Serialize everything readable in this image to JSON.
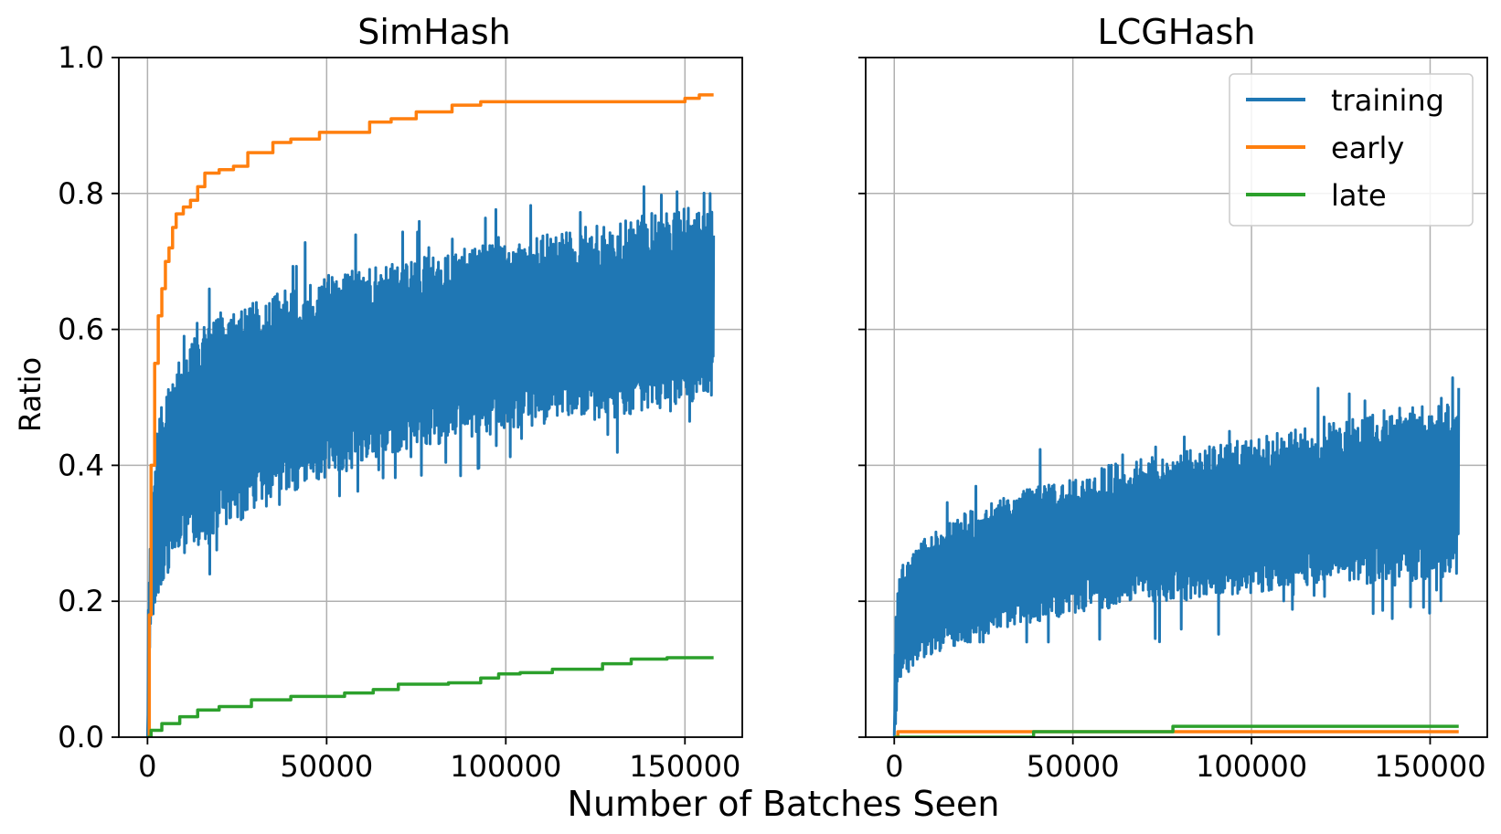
{
  "figure": {
    "xlabel": "Number of Batches Seen",
    "ylabel": "Ratio"
  },
  "colors": {
    "training": "#1f77b4",
    "early": "#ff7f0e",
    "late": "#2ca02c",
    "grid": "#b0b0b0",
    "axis": "#000000"
  },
  "legend": {
    "placement": "upper-right of right panel",
    "entries": [
      "training",
      "early",
      "late"
    ]
  },
  "chart_data": [
    {
      "type": "line",
      "title": "SimHash",
      "xlabel": "",
      "ylabel": "Ratio",
      "xlim": [
        -8000,
        166000
      ],
      "ylim": [
        0,
        1.0
      ],
      "grid": true,
      "xticks": [
        0,
        50000,
        100000,
        150000
      ],
      "xtick_labels": [
        "0",
        "50000",
        "100000",
        "150000"
      ],
      "yticks": [
        0,
        0.2,
        0.4,
        0.6,
        0.8,
        1.0
      ],
      "ytick_labels": [
        "0.0",
        "0.2",
        "0.4",
        "0.6",
        "0.8",
        "1.0"
      ],
      "series": [
        {
          "name": "training",
          "kind": "noisy-band",
          "x": [
            0,
            1000,
            3000,
            5000,
            10000,
            20000,
            30000,
            40000,
            50000,
            60000,
            70000,
            80000,
            90000,
            100000,
            110000,
            120000,
            130000,
            140000,
            150000,
            158000
          ],
          "low": [
            0.0,
            0.16,
            0.2,
            0.24,
            0.27,
            0.3,
            0.33,
            0.36,
            0.38,
            0.4,
            0.42,
            0.43,
            0.44,
            0.45,
            0.46,
            0.47,
            0.47,
            0.48,
            0.49,
            0.5
          ],
          "high": [
            0.15,
            0.35,
            0.47,
            0.5,
            0.58,
            0.62,
            0.64,
            0.66,
            0.68,
            0.69,
            0.7,
            0.71,
            0.72,
            0.73,
            0.74,
            0.75,
            0.76,
            0.77,
            0.78,
            0.78
          ],
          "spike_low_min": 0.24,
          "spike_high_max": 0.81
        },
        {
          "name": "early",
          "kind": "step",
          "x": [
            0,
            500,
            1000,
            2000,
            3000,
            4000,
            5000,
            6000,
            7000,
            8000,
            10000,
            12000,
            14000,
            16000,
            20000,
            24000,
            28000,
            35000,
            40000,
            48000,
            56000,
            62000,
            68000,
            75000,
            85000,
            93000,
            110000,
            130000,
            150000,
            154000,
            158000
          ],
          "y": [
            0.0,
            0.18,
            0.4,
            0.55,
            0.62,
            0.66,
            0.7,
            0.72,
            0.75,
            0.77,
            0.78,
            0.79,
            0.81,
            0.83,
            0.835,
            0.84,
            0.86,
            0.875,
            0.88,
            0.89,
            0.89,
            0.905,
            0.91,
            0.92,
            0.93,
            0.935,
            0.935,
            0.935,
            0.94,
            0.945,
            0.945
          ]
        },
        {
          "name": "late",
          "kind": "step",
          "x": [
            0,
            1000,
            4000,
            9000,
            14000,
            20000,
            29000,
            40000,
            55000,
            63000,
            70000,
            84000,
            93000,
            98000,
            104000,
            113000,
            127000,
            135000,
            145000,
            158000
          ],
          "y": [
            0.0,
            0.01,
            0.02,
            0.03,
            0.04,
            0.045,
            0.055,
            0.06,
            0.065,
            0.07,
            0.078,
            0.08,
            0.087,
            0.093,
            0.095,
            0.1,
            0.108,
            0.115,
            0.117,
            0.117
          ]
        }
      ]
    },
    {
      "type": "line",
      "title": "LCGHash",
      "xlabel": "",
      "ylabel": "",
      "xlim": [
        -8000,
        166000
      ],
      "ylim": [
        0,
        1.0
      ],
      "grid": true,
      "xticks": [
        0,
        50000,
        100000,
        150000
      ],
      "xtick_labels": [
        "0",
        "50000",
        "100000",
        "150000"
      ],
      "yticks": [
        0,
        0.2,
        0.4,
        0.6,
        0.8,
        1.0
      ],
      "ytick_labels": [
        "",
        "",
        "",
        "",
        "",
        ""
      ],
      "series": [
        {
          "name": "training",
          "kind": "noisy-band",
          "x": [
            0,
            1000,
            3000,
            5000,
            10000,
            20000,
            30000,
            40000,
            50000,
            60000,
            70000,
            80000,
            90000,
            100000,
            110000,
            120000,
            130000,
            140000,
            150000,
            158000
          ],
          "low": [
            0.0,
            0.05,
            0.09,
            0.1,
            0.12,
            0.14,
            0.16,
            0.17,
            0.18,
            0.19,
            0.2,
            0.2,
            0.21,
            0.21,
            0.22,
            0.22,
            0.23,
            0.23,
            0.23,
            0.24
          ],
          "high": [
            0.12,
            0.24,
            0.27,
            0.28,
            0.3,
            0.33,
            0.35,
            0.37,
            0.38,
            0.4,
            0.41,
            0.42,
            0.43,
            0.44,
            0.45,
            0.46,
            0.47,
            0.48,
            0.49,
            0.5
          ],
          "spike_low_min": 0.14,
          "spike_high_max": 0.56
        },
        {
          "name": "early",
          "kind": "step",
          "x": [
            0,
            1000,
            158000
          ],
          "y": [
            0.0,
            0.008,
            0.008
          ]
        },
        {
          "name": "late",
          "kind": "step",
          "x": [
            0,
            39000,
            78000,
            158000
          ],
          "y": [
            0.0,
            0.008,
            0.016,
            0.016
          ]
        }
      ]
    }
  ]
}
